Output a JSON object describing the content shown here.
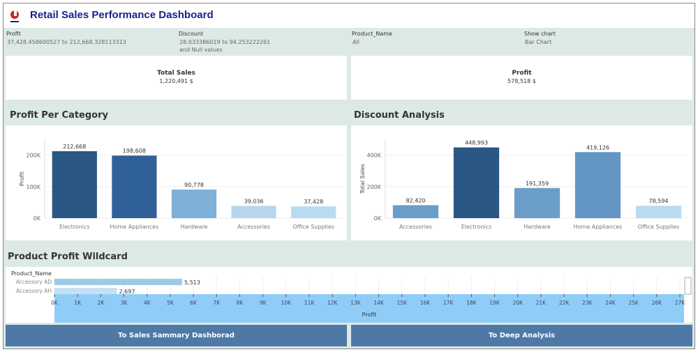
{
  "header": {
    "title": "Retail Sales Performance Dashboard",
    "logo": "Discount"
  },
  "filters": [
    {
      "label": "Profit",
      "value": "37,428.458600527 to 212,668.328113313",
      "value2": ""
    },
    {
      "label": "Discount",
      "value": "28.033386019 to 94.253222261",
      "value2": "and Null values"
    },
    {
      "label": "Product_Name",
      "value": "All",
      "value2": ""
    },
    {
      "label": "Show chart",
      "value": "Bar Chart",
      "value2": ""
    }
  ],
  "kpis": [
    {
      "label": "Total Sales",
      "value": "1,220,491 $"
    },
    {
      "label": "Profit",
      "value": "578,518 $"
    }
  ],
  "sections": {
    "profit_category": "Profit Per Category",
    "discount": "Discount Analysis",
    "wildcard": "Product Profit Wildcard"
  },
  "buttons": {
    "left": "To Sales Sammary Dashborad",
    "right": "To Deep Analysis"
  },
  "chart_data": [
    {
      "type": "bar",
      "title": "Profit Per Category",
      "ylabel": "Profit",
      "ylim": [
        0,
        250000
      ],
      "yticks": [
        "0K",
        "100K",
        "200K"
      ],
      "ytick_values": [
        0,
        100000,
        200000
      ],
      "categories": [
        "Electronics",
        "Home Appliances",
        "Hardware",
        "Accessories",
        "Office Supplies"
      ],
      "values": [
        212668,
        198608,
        90778,
        39036,
        37428
      ],
      "labels": [
        "212,668",
        "198,608",
        "90,778",
        "39,036",
        "37,428"
      ],
      "colors": [
        "#2a5783",
        "#30609a",
        "#7eb0d8",
        "#b5d6ee",
        "#b9dbf1"
      ]
    },
    {
      "type": "bar",
      "title": "Discount Analysis",
      "ylabel": "Total Sales",
      "ylim": [
        0,
        500000
      ],
      "yticks": [
        "0K",
        "200K",
        "400K"
      ],
      "ytick_values": [
        0,
        200000,
        400000
      ],
      "categories": [
        "Accessories",
        "Electronics",
        "Hardware",
        "Home Appliances",
        "Office Supplies"
      ],
      "values": [
        82420,
        448993,
        191359,
        419126,
        78594
      ],
      "labels": [
        "82,420",
        "448,993",
        "191,359",
        "419,126",
        "78,594"
      ],
      "colors": [
        "#6b9dc9",
        "#2a5783",
        "#6b9dc9",
        "#6496c5",
        "#b9dbf1"
      ]
    },
    {
      "type": "bar",
      "orientation": "horizontal",
      "title": "Product Profit Wildcard",
      "ylabel": "Product_Name",
      "xlabel": "Profit",
      "xlim": [
        0,
        27000
      ],
      "categories": [
        "Accessory AD",
        "Accessory AH"
      ],
      "values": [
        5513,
        2697
      ],
      "labels": [
        "5,513",
        "2,697"
      ],
      "colors": [
        "#9ecae9",
        "#c6e0f3"
      ],
      "xticks": [
        "0K",
        "1K",
        "2K",
        "3K",
        "4K",
        "5K",
        "6K",
        "7K",
        "8K",
        "9K",
        "10K",
        "11K",
        "12K",
        "13K",
        "14K",
        "15K",
        "16K",
        "17K",
        "18K",
        "19K",
        "20K",
        "21K",
        "22K",
        "23K",
        "24K",
        "25K",
        "26K",
        "27K"
      ]
    }
  ]
}
